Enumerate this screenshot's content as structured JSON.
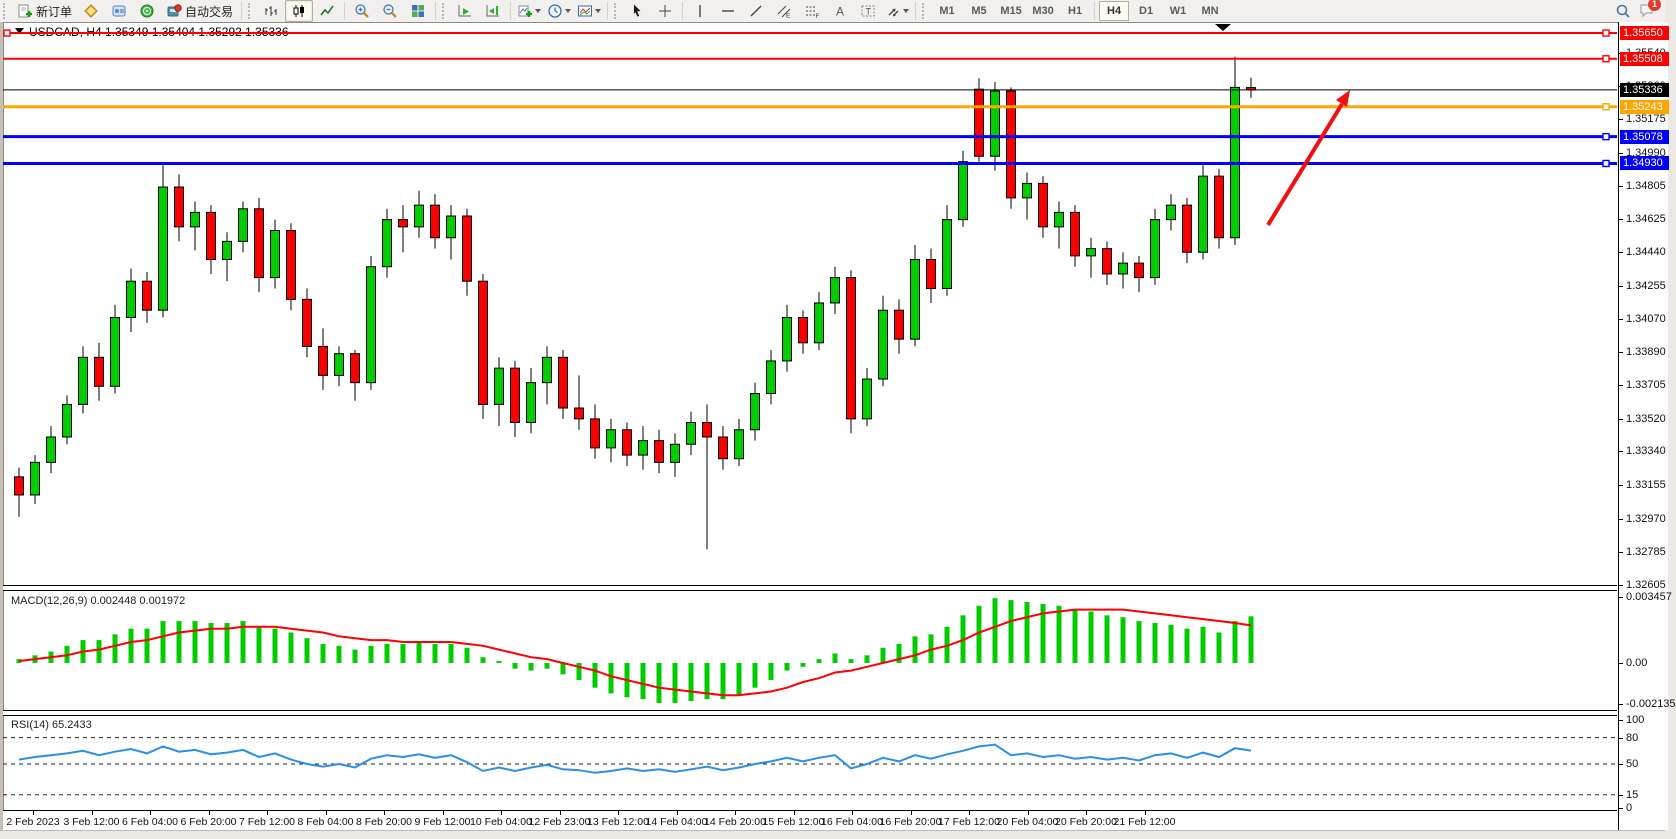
{
  "toolbar": {
    "new_order": "新订单",
    "autotrading": "自动交易",
    "timeframes": [
      "M1",
      "M5",
      "M15",
      "M30",
      "H1",
      "H4",
      "D1",
      "W1",
      "MN"
    ],
    "active_timeframe": "H4",
    "notification_badge": "1",
    "icons": [
      "new-order",
      "market-watch",
      "navigator",
      "terminal",
      "autotrading",
      "bar-chart",
      "candlestick",
      "line-chart",
      "zoom-in",
      "zoom-out",
      "tile-windows",
      "auto-scroll",
      "chart-shift",
      "indicators",
      "periods",
      "templates",
      "cursor",
      "crosshair",
      "vertical-line",
      "horizontal-line",
      "trendline",
      "equidistant-channel",
      "fibonacci",
      "text",
      "text-label",
      "arrows",
      "search",
      "notifications"
    ]
  },
  "chart": {
    "title": "USDCAD, H4  1.35349 1.35404 1.35292 1.35336",
    "macd_label": "MACD(12,26,9) 0.002448 0.001972",
    "rsi_label": "RSI(14) 65.2433"
  },
  "chart_data": {
    "type": "candlestick",
    "symbol": "USDCAD",
    "timeframe": "H4",
    "current_bar": {
      "open": 1.35349,
      "high": 1.35404,
      "low": 1.35292,
      "close": 1.35336
    },
    "current_price": {
      "value": 1.35336,
      "label": "1.35336",
      "color": "#000000"
    },
    "price_axis": {
      "max": 1.35711,
      "min": 1.32603,
      "ticks": [
        "1.35540",
        "1.35360",
        "1.35175",
        "1.34990",
        "1.34805",
        "1.34625",
        "1.34440",
        "1.34255",
        "1.34070",
        "1.33890",
        "1.33705",
        "1.33520",
        "1.33340",
        "1.33155",
        "1.32970",
        "1.32785",
        "1.32605"
      ]
    },
    "hlines": [
      {
        "price": 1.3565,
        "label": "1.35650",
        "color": "#ff0000",
        "width": 2,
        "selected": true
      },
      {
        "price": 1.35508,
        "label": "1.35508",
        "color": "#ff0000",
        "width": 2,
        "selected": false
      },
      {
        "price": 1.35243,
        "label": "1.35243",
        "color": "#ffa500",
        "width": 3,
        "selected": false
      },
      {
        "price": 1.35078,
        "label": "1.35078",
        "color": "#0000ff",
        "width": 3,
        "selected": false
      },
      {
        "price": 1.3493,
        "label": "1.34930",
        "color": "#0000ff",
        "width": 3,
        "selected": false
      }
    ],
    "colors": {
      "up": "#00cc00",
      "down": "#fa0000",
      "wick": "#000000",
      "rsi_line": "#2b8fe8",
      "macd_hist": "#00cc00",
      "macd_signal": "#ff0000",
      "trend_arrow": "#f01010"
    },
    "ohlc": [
      [
        1.332,
        1.3325,
        1.3298,
        1.331
      ],
      [
        1.331,
        1.3332,
        1.3305,
        1.3328
      ],
      [
        1.3328,
        1.3348,
        1.3322,
        1.3342
      ],
      [
        1.3342,
        1.3365,
        1.3338,
        1.336
      ],
      [
        1.336,
        1.3392,
        1.3355,
        1.3386
      ],
      [
        1.3386,
        1.3394,
        1.3362,
        1.337
      ],
      [
        1.337,
        1.3415,
        1.3366,
        1.3408
      ],
      [
        1.3408,
        1.3435,
        1.34,
        1.3428
      ],
      [
        1.3428,
        1.3433,
        1.3405,
        1.3412
      ],
      [
        1.3412,
        1.3492,
        1.3408,
        1.348
      ],
      [
        1.348,
        1.3487,
        1.345,
        1.3458
      ],
      [
        1.3458,
        1.3472,
        1.3445,
        1.3466
      ],
      [
        1.3466,
        1.347,
        1.3432,
        1.344
      ],
      [
        1.344,
        1.3455,
        1.3428,
        1.345
      ],
      [
        1.345,
        1.3472,
        1.3444,
        1.3468
      ],
      [
        1.3468,
        1.3474,
        1.3422,
        1.343
      ],
      [
        1.343,
        1.3462,
        1.3424,
        1.3456
      ],
      [
        1.3456,
        1.346,
        1.3412,
        1.3418
      ],
      [
        1.3418,
        1.3424,
        1.3386,
        1.3392
      ],
      [
        1.3392,
        1.3402,
        1.3368,
        1.3376
      ],
      [
        1.3376,
        1.3392,
        1.337,
        1.3388
      ],
      [
        1.3388,
        1.339,
        1.3362,
        1.3372
      ],
      [
        1.3372,
        1.3442,
        1.3368,
        1.3436
      ],
      [
        1.3436,
        1.3468,
        1.343,
        1.3462
      ],
      [
        1.3462,
        1.347,
        1.3444,
        1.3458
      ],
      [
        1.3458,
        1.3478,
        1.3452,
        1.347
      ],
      [
        1.347,
        1.3476,
        1.3446,
        1.3452
      ],
      [
        1.3452,
        1.347,
        1.344,
        1.3464
      ],
      [
        1.3464,
        1.3468,
        1.342,
        1.3428
      ],
      [
        1.3428,
        1.3432,
        1.3352,
        1.336
      ],
      [
        1.336,
        1.3386,
        1.3348,
        1.338
      ],
      [
        1.338,
        1.3384,
        1.3342,
        1.335
      ],
      [
        1.335,
        1.338,
        1.3344,
        1.3372
      ],
      [
        1.3372,
        1.3392,
        1.336,
        1.3386
      ],
      [
        1.3386,
        1.339,
        1.3352,
        1.3358
      ],
      [
        1.3358,
        1.3376,
        1.3346,
        1.3352
      ],
      [
        1.3352,
        1.336,
        1.333,
        1.3336
      ],
      [
        1.3336,
        1.3352,
        1.3328,
        1.3346
      ],
      [
        1.3346,
        1.335,
        1.3326,
        1.3332
      ],
      [
        1.3332,
        1.3348,
        1.3324,
        1.334
      ],
      [
        1.334,
        1.3346,
        1.3322,
        1.3328
      ],
      [
        1.3328,
        1.3344,
        1.332,
        1.3338
      ],
      [
        1.3338,
        1.3356,
        1.3332,
        1.335
      ],
      [
        1.335,
        1.336,
        1.328,
        1.3342
      ],
      [
        1.3342,
        1.3348,
        1.3324,
        1.333
      ],
      [
        1.333,
        1.3352,
        1.3326,
        1.3346
      ],
      [
        1.3346,
        1.3372,
        1.334,
        1.3366
      ],
      [
        1.3366,
        1.339,
        1.336,
        1.3384
      ],
      [
        1.3384,
        1.3415,
        1.3378,
        1.3408
      ],
      [
        1.3408,
        1.3412,
        1.3388,
        1.3394
      ],
      [
        1.3394,
        1.3422,
        1.339,
        1.3416
      ],
      [
        1.3416,
        1.3436,
        1.341,
        1.343
      ],
      [
        1.343,
        1.3434,
        1.3344,
        1.3352
      ],
      [
        1.3352,
        1.338,
        1.3348,
        1.3374
      ],
      [
        1.3374,
        1.342,
        1.337,
        1.3412
      ],
      [
        1.3412,
        1.3418,
        1.3388,
        1.3396
      ],
      [
        1.3396,
        1.3448,
        1.3392,
        1.344
      ],
      [
        1.344,
        1.3446,
        1.3416,
        1.3424
      ],
      [
        1.3424,
        1.347,
        1.342,
        1.3462
      ],
      [
        1.3462,
        1.35,
        1.3458,
        1.3494
      ],
      [
        1.3534,
        1.354,
        1.3494,
        1.3497
      ],
      [
        1.3497,
        1.3538,
        1.3489,
        1.3533
      ],
      [
        1.3533,
        1.3535,
        1.3468,
        1.3474
      ],
      [
        1.3474,
        1.3488,
        1.3462,
        1.3482
      ],
      [
        1.3482,
        1.3486,
        1.3452,
        1.3458
      ],
      [
        1.3458,
        1.3472,
        1.3446,
        1.3466
      ],
      [
        1.3466,
        1.347,
        1.3436,
        1.3442
      ],
      [
        1.3442,
        1.3452,
        1.343,
        1.3446
      ],
      [
        1.3446,
        1.345,
        1.3426,
        1.3432
      ],
      [
        1.3432,
        1.3444,
        1.3424,
        1.3438
      ],
      [
        1.3438,
        1.3442,
        1.3422,
        1.343
      ],
      [
        1.343,
        1.3468,
        1.3426,
        1.3462
      ],
      [
        1.3462,
        1.3476,
        1.3456,
        1.347
      ],
      [
        1.347,
        1.3474,
        1.3438,
        1.3444
      ],
      [
        1.3444,
        1.3492,
        1.344,
        1.3486
      ],
      [
        1.3486,
        1.349,
        1.3446,
        1.3452
      ],
      [
        1.3452,
        1.3552,
        1.3448,
        1.3535
      ],
      [
        1.35349,
        1.35404,
        1.35292,
        1.35336
      ]
    ],
    "macd": {
      "params": "12,26,9",
      "main_last": 0.002448,
      "signal_last": 0.001972,
      "range": {
        "max": 0.00383,
        "min": -0.00247
      },
      "axis_ticks": [
        {
          "v": 0.003457,
          "label": "0.003457"
        },
        {
          "v": 0,
          "label": "0.00"
        },
        {
          "v": -0.002135,
          "label": "-0.002135"
        }
      ],
      "main": [
        0.0002,
        0.0004,
        0.0006,
        0.0009,
        0.0012,
        0.0012,
        0.0015,
        0.0018,
        0.0018,
        0.0022,
        0.0022,
        0.0022,
        0.0021,
        0.0021,
        0.0022,
        0.0019,
        0.0018,
        0.0016,
        0.0013,
        0.001,
        0.0009,
        0.0007,
        0.0009,
        0.001,
        0.001,
        0.0011,
        0.001,
        0.001,
        0.0008,
        0.0003,
        0.0001,
        -0.0003,
        -0.0004,
        -0.0003,
        -0.0006,
        -0.0009,
        -0.0013,
        -0.0016,
        -0.0018,
        -0.0019,
        -0.0021,
        -0.0021,
        -0.002,
        -0.0019,
        -0.0019,
        -0.0017,
        -0.0013,
        -0.0009,
        -0.0004,
        -0.0002,
        0.0002,
        0.0005,
        0.0002,
        0.0004,
        0.0008,
        0.001,
        0.0014,
        0.0015,
        0.0019,
        0.0025,
        0.003,
        0.0034,
        0.0033,
        0.0032,
        0.0031,
        0.003,
        0.0028,
        0.0027,
        0.0025,
        0.0024,
        0.0022,
        0.0021,
        0.002,
        0.0018,
        0.0019,
        0.0016,
        0.0022,
        0.002448
      ],
      "signal": [
        0.0001,
        0.0002,
        0.0003,
        0.0004,
        0.0006,
        0.0007,
        0.0009,
        0.0011,
        0.0012,
        0.0014,
        0.0016,
        0.0017,
        0.0018,
        0.0018,
        0.0019,
        0.0019,
        0.0019,
        0.0018,
        0.0017,
        0.0016,
        0.0014,
        0.0013,
        0.0012,
        0.0012,
        0.0011,
        0.0011,
        0.0011,
        0.0011,
        0.001,
        0.0009,
        0.0007,
        0.0005,
        0.0003,
        0.0002,
        0.0,
        -0.0002,
        -0.0004,
        -0.0007,
        -0.0009,
        -0.0011,
        -0.0013,
        -0.0014,
        -0.0015,
        -0.0016,
        -0.0017,
        -0.0017,
        -0.0016,
        -0.0015,
        -0.0013,
        -0.001,
        -0.0008,
        -0.0005,
        -0.0004,
        -0.0002,
        0.0,
        0.0002,
        0.0004,
        0.0007,
        0.0009,
        0.0012,
        0.0016,
        0.0019,
        0.0022,
        0.0024,
        0.0026,
        0.0027,
        0.0028,
        0.0028,
        0.0028,
        0.0028,
        0.0027,
        0.0026,
        0.0025,
        0.0024,
        0.0023,
        0.0022,
        0.0021,
        0.001972
      ]
    },
    "rsi": {
      "period": 14,
      "last": 65.2433,
      "axis_ticks": [
        {
          "v": 100,
          "label": "100"
        },
        {
          "v": 80,
          "label": "80"
        },
        {
          "v": 50,
          "label": "50"
        },
        {
          "v": 15,
          "label": "15"
        },
        {
          "v": 0,
          "label": "0"
        }
      ],
      "dashed_levels": [
        80,
        50,
        15
      ],
      "values": [
        55,
        58,
        60,
        62,
        65,
        60,
        64,
        67,
        62,
        70,
        64,
        66,
        61,
        63,
        66,
        58,
        62,
        55,
        50,
        47,
        50,
        46,
        56,
        60,
        58,
        61,
        57,
        60,
        52,
        42,
        46,
        42,
        46,
        49,
        44,
        43,
        40,
        42,
        45,
        42,
        44,
        41,
        44,
        47,
        43,
        46,
        50,
        53,
        57,
        53,
        57,
        60,
        45,
        50,
        57,
        53,
        60,
        56,
        61,
        65,
        70,
        72,
        60,
        62,
        58,
        60,
        56,
        58,
        55,
        57,
        54,
        60,
        62,
        57,
        63,
        58,
        68,
        65.2433
      ]
    },
    "time_axis": [
      "2 Feb 2023",
      "3 Feb 12:00",
      "6 Feb 04:00",
      "6 Feb 20:00",
      "7 Feb 12:00",
      "8 Feb 04:00",
      "8 Feb 20:00",
      "9 Feb 12:00",
      "10 Feb 04:00",
      "12 Feb 23:00",
      "13 Feb 12:00",
      "14 Feb 04:00",
      "14 Feb 20:00",
      "15 Feb 12:00",
      "16 Feb 04:00",
      "16 Feb 20:00",
      "17 Feb 12:00",
      "20 Feb 04:00",
      "20 Feb 20:00",
      "21 Feb 12:00"
    ],
    "annotations": {
      "trend_arrow": {
        "direction": "up-right"
      },
      "shift_marker": true
    }
  }
}
